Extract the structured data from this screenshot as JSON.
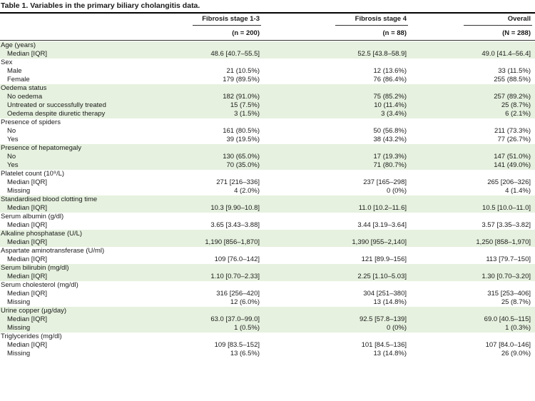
{
  "caption": "Table 1. Variables in the primary biliary cholangitis data.",
  "columns": [
    {
      "name": "Fibrosis stage 1-3",
      "n": "(n = 200)"
    },
    {
      "name": "Fibrosis stage 4",
      "n": "(n = 88)"
    },
    {
      "name": "Overall",
      "n": "(N = 288)"
    }
  ],
  "rows": [
    {
      "label": "Age (years)",
      "header": true,
      "shade": true
    },
    {
      "label": "Median [IQR]",
      "values": [
        "48.6 [40.7–55.5]",
        "52.5 [43.8–58.9]",
        "49.0 [41.4–56.4]"
      ],
      "shade": true
    },
    {
      "label": "Sex",
      "header": true
    },
    {
      "label": "Male",
      "values": [
        "21 (10.5%)",
        "12 (13.6%)",
        "33 (11.5%)"
      ]
    },
    {
      "label": "Female",
      "values": [
        "179 (89.5%)",
        "76 (86.4%)",
        "255 (88.5%)"
      ]
    },
    {
      "label": "Oedema status",
      "header": true,
      "shade": true
    },
    {
      "label": "No oedema",
      "values": [
        "182 (91.0%)",
        "75 (85.2%)",
        "257 (89.2%)"
      ],
      "shade": true
    },
    {
      "label": "Untreated or successfully treated",
      "values": [
        "15 (7.5%)",
        "10 (11.4%)",
        "25 (8.7%)"
      ],
      "shade": true
    },
    {
      "label": "Oedema despite diuretic therapy",
      "values": [
        "3 (1.5%)",
        "3 (3.4%)",
        "6 (2.1%)"
      ],
      "shade": true
    },
    {
      "label": "Presence of spiders",
      "header": true
    },
    {
      "label": "No",
      "values": [
        "161 (80.5%)",
        "50 (56.8%)",
        "211 (73.3%)"
      ]
    },
    {
      "label": "Yes",
      "values": [
        "39 (19.5%)",
        "38 (43.2%)",
        "77 (26.7%)"
      ]
    },
    {
      "label": "Presence of hepatomegaly",
      "header": true,
      "shade": true
    },
    {
      "label": "No",
      "values": [
        "130 (65.0%)",
        "17 (19.3%)",
        "147 (51.0%)"
      ],
      "shade": true
    },
    {
      "label": "Yes",
      "values": [
        "70 (35.0%)",
        "71 (80.7%)",
        "141 (49.0%)"
      ],
      "shade": true
    },
    {
      "label": "Platelet count (10⁹/L)",
      "header": true
    },
    {
      "label": "Median [IQR]",
      "values": [
        "271 [216–336]",
        "237 [165–298]",
        "265 [206–326]"
      ]
    },
    {
      "label": "Missing",
      "values": [
        "4 (2.0%)",
        "0 (0%)",
        "4 (1.4%)"
      ]
    },
    {
      "label": "Standardised blood clotting time",
      "header": true,
      "shade": true
    },
    {
      "label": "Median [IQR]",
      "values": [
        "10.3 [9.90–10.8]",
        "11.0 [10.2–11.6]",
        "10.5 [10.0–11.0]"
      ],
      "shade": true
    },
    {
      "label": "Serum albumin (g/dl)",
      "header": true
    },
    {
      "label": "Median [IQR]",
      "values": [
        "3.65 [3.43–3.88]",
        "3.44 [3.19–3.64]",
        "3.57 [3.35–3.82]"
      ]
    },
    {
      "label": "Alkaline phosphatase (U/L)",
      "header": true,
      "shade": true
    },
    {
      "label": "Median [IQR]",
      "values": [
        "1,190 [856–1,870]",
        "1,390 [955–2,140]",
        "1,250 [858–1,970]"
      ],
      "shade": true
    },
    {
      "label": "Aspartate aminotransferase (U/ml)",
      "header": true
    },
    {
      "label": "Median [IQR]",
      "values": [
        "109 [76.0–142]",
        "121 [89.9–156]",
        "113 [79.7–150]"
      ]
    },
    {
      "label": "Serum bilirubin (mg/dl)",
      "header": true,
      "shade": true
    },
    {
      "label": "Median [IQR]",
      "values": [
        "1.10 [0.70–2.33]",
        "2.25 [1.10–5.03]",
        "1.30 [0.70–3.20]"
      ],
      "shade": true
    },
    {
      "label": "Serum cholesterol (mg/dl)",
      "header": true
    },
    {
      "label": "Median [IQR]",
      "values": [
        "316 [256–420]",
        "304 [251–380]",
        "315 [253–406]"
      ]
    },
    {
      "label": "Missing",
      "values": [
        "12 (6.0%)",
        "13 (14.8%)",
        "25 (8.7%)"
      ]
    },
    {
      "label": "Urine copper (µg/day)",
      "header": true,
      "shade": true
    },
    {
      "label": "Median [IQR]",
      "values": [
        "63.0 [37.0–99.0]",
        "92.5 [57.8–139]",
        "69.0 [40.5–115]"
      ],
      "shade": true
    },
    {
      "label": "Missing",
      "values": [
        "1 (0.5%)",
        "0 (0%)",
        "1 (0.3%)"
      ],
      "shade": true
    },
    {
      "label": "Triglycerides (mg/dl)",
      "header": true
    },
    {
      "label": "Median [IQR]",
      "values": [
        "109 [83.5–152]",
        "101 [84.5–136]",
        "107 [84.0–146]"
      ]
    },
    {
      "label": "Missing",
      "values": [
        "13 (6.5%)",
        "13 (14.8%)",
        "26 (9.0%)"
      ]
    }
  ]
}
